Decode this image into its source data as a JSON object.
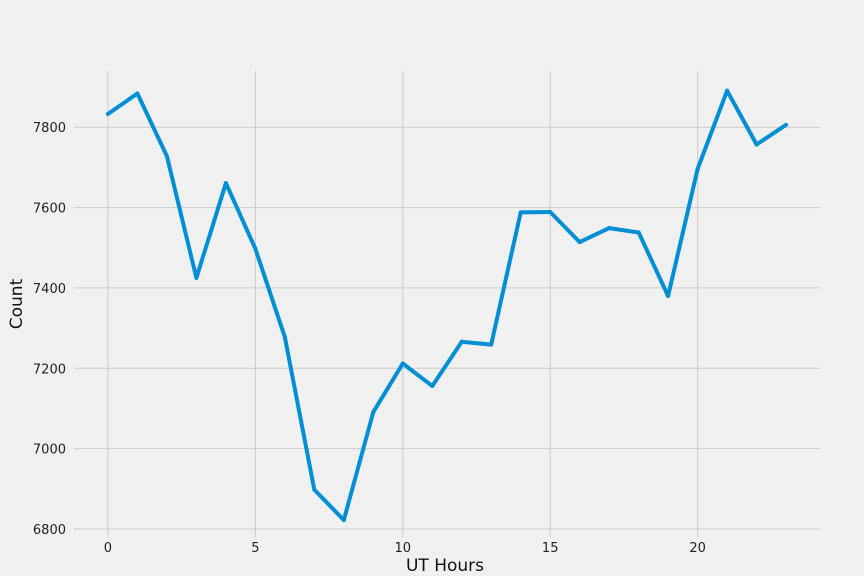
{
  "chart_data": {
    "type": "line",
    "title": "",
    "xlabel": "UT Hours",
    "ylabel": "Count",
    "x": [
      0,
      1,
      2,
      3,
      4,
      5,
      6,
      7,
      8,
      9,
      10,
      11,
      12,
      13,
      14,
      15,
      16,
      17,
      18,
      19,
      20,
      21,
      22,
      23
    ],
    "series": [
      {
        "values": [
          7833,
          7884,
          7728,
          7425,
          7661,
          7498,
          7278,
          6898,
          6822,
          7091,
          7212,
          7156,
          7266,
          7259,
          7588,
          7589,
          7514,
          7549,
          7538,
          7380,
          7696,
          7891,
          7757,
          7806
        ],
        "color": "#008fd5"
      }
    ],
    "xlim": [
      -1.15,
      24.15
    ],
    "ylim": [
      6780,
      7940
    ],
    "xticks": [
      0,
      5,
      10,
      15,
      20
    ],
    "xtick_labels": [
      "0",
      "5",
      "10",
      "15",
      "20"
    ],
    "yticks": [
      6800,
      7000,
      7200,
      7400,
      7600,
      7800
    ],
    "ytick_labels": [
      "6800",
      "7000",
      "7200",
      "7400",
      "7600",
      "7800"
    ],
    "grid": true,
    "legend": "none",
    "background_color": "#f0f0f0",
    "grid_color": "#cbcbcb"
  }
}
